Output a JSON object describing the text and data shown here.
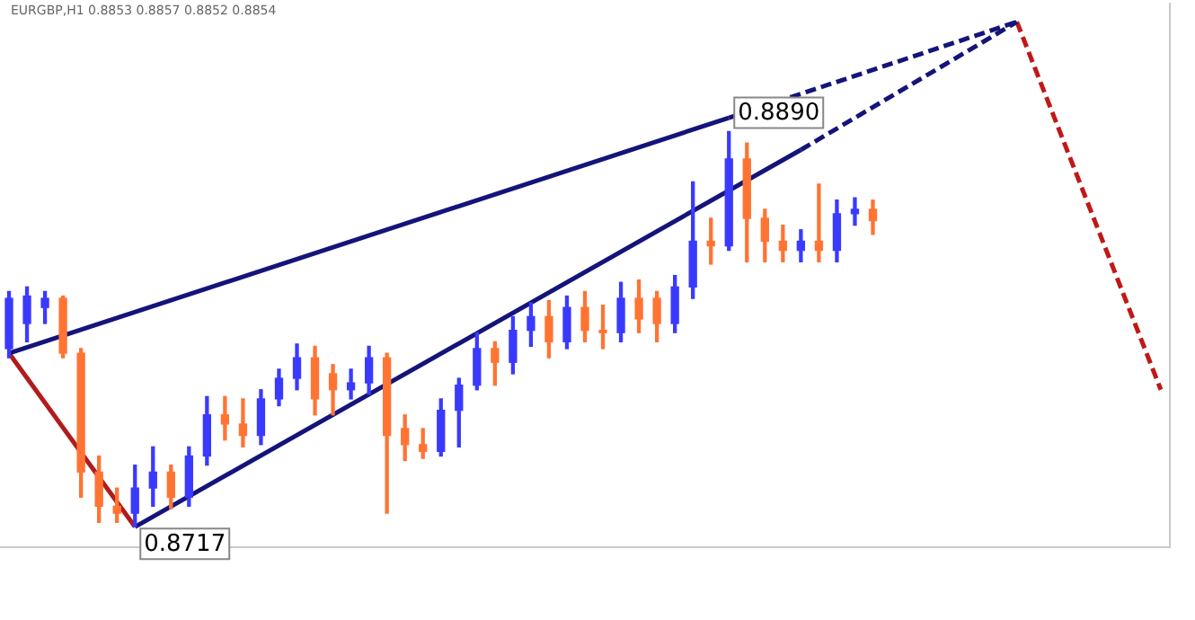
{
  "chart_data": {
    "type": "candlestick",
    "title": "EURGBP,H1  0.8853 0.8857 0.8852 0.8854",
    "categories": [
      null,
      null,
      null,
      null,
      null,
      null,
      null,
      null,
      null,
      null,
      null,
      null,
      null,
      null,
      null,
      null,
      null,
      null,
      null,
      null,
      null,
      null,
      null,
      null,
      null,
      null,
      null,
      null,
      null,
      null,
      null,
      null,
      null,
      null,
      null,
      null,
      null,
      null,
      null,
      null,
      null,
      null,
      null,
      null,
      null,
      null,
      null,
      null,
      null,
      null,
      null,
      null,
      null,
      null,
      null,
      null,
      null,
      null,
      null,
      null,
      null,
      null,
      null,
      null,
      null
    ],
    "ohlc": [
      [
        0.8795,
        0.882,
        0.8791,
        0.8817
      ],
      [
        0.8806,
        0.8822,
        0.8798,
        0.8818
      ],
      [
        0.8813,
        0.882,
        0.8806,
        0.8817
      ],
      [
        0.8817,
        0.8818,
        0.8791,
        0.8793
      ],
      [
        0.8793,
        0.8795,
        0.873,
        0.8741
      ],
      [
        0.8741,
        0.8748,
        0.8719,
        0.8726
      ],
      [
        0.8726,
        0.8734,
        0.8719,
        0.8723
      ],
      [
        0.8723,
        0.8744,
        0.8717,
        0.8734
      ],
      [
        0.8734,
        0.8752,
        0.8726,
        0.8741
      ],
      [
        0.8741,
        0.8744,
        0.8725,
        0.873
      ],
      [
        0.873,
        0.8752,
        0.8726,
        0.8748
      ],
      [
        0.8748,
        0.8774,
        0.8744,
        0.8766
      ],
      [
        0.8766,
        0.8774,
        0.8755,
        0.8762
      ],
      [
        0.8762,
        0.8773,
        0.8752,
        0.8757
      ],
      [
        0.8757,
        0.8777,
        0.8753,
        0.8773
      ],
      [
        0.8773,
        0.8786,
        0.877,
        0.8782
      ],
      [
        0.8782,
        0.8797,
        0.8777,
        0.8791
      ],
      [
        0.8791,
        0.8796,
        0.8766,
        0.8773
      ],
      [
        0.8784,
        0.8788,
        0.8766,
        0.8777
      ],
      [
        0.8777,
        0.8786,
        0.8773,
        0.878
      ],
      [
        0.878,
        0.8796,
        0.8775,
        0.8791
      ],
      [
        0.8791,
        0.8793,
        0.8723,
        0.8757
      ],
      [
        0.876,
        0.8766,
        0.8746,
        0.8753
      ],
      [
        0.8753,
        0.876,
        0.8747,
        0.875
      ],
      [
        0.875,
        0.8773,
        0.8748,
        0.8768
      ],
      [
        0.8768,
        0.8782,
        0.8752,
        0.8779
      ],
      [
        0.8779,
        0.8802,
        0.8777,
        0.8795
      ],
      [
        0.8795,
        0.8798,
        0.8779,
        0.8789
      ],
      [
        0.8789,
        0.8809,
        0.8784,
        0.8803
      ],
      [
        0.8803,
        0.8815,
        0.8796,
        0.8809
      ],
      [
        0.8809,
        0.8816,
        0.8791,
        0.8798
      ],
      [
        0.8798,
        0.8818,
        0.8795,
        0.8813
      ],
      [
        0.8813,
        0.882,
        0.8798,
        0.8803
      ],
      [
        0.8803,
        0.8814,
        0.8795,
        0.8802
      ],
      [
        0.8802,
        0.8824,
        0.8798,
        0.8817
      ],
      [
        0.8817,
        0.8825,
        0.8802,
        0.8808
      ],
      [
        0.8817,
        0.882,
        0.8798,
        0.8806
      ],
      [
        0.8806,
        0.8827,
        0.8802,
        0.8822
      ],
      [
        0.8822,
        0.8868,
        0.8817,
        0.8842
      ],
      [
        0.8842,
        0.8852,
        0.8832,
        0.884
      ],
      [
        0.884,
        0.889,
        0.8838,
        0.8878
      ],
      [
        0.8878,
        0.8885,
        0.8833,
        0.8852
      ],
      [
        0.8852,
        0.8856,
        0.8833,
        0.8842
      ],
      [
        0.8842,
        0.8849,
        0.8833,
        0.8838
      ],
      [
        0.8838,
        0.8847,
        0.8833,
        0.8842
      ],
      [
        0.8842,
        0.8867,
        0.8833,
        0.8838
      ],
      [
        0.8838,
        0.886,
        0.8833,
        0.8854
      ],
      [
        0.8854,
        0.8861,
        0.8849,
        0.8856
      ],
      [
        0.8856,
        0.886,
        0.8845,
        0.8851
      ],
      null,
      null,
      null,
      null,
      null,
      null,
      null,
      null,
      null,
      null,
      null,
      null,
      null,
      null,
      null,
      null
    ],
    "colors": [
      "#3a3aff",
      "#3a3aff",
      "#3a3aff",
      "#ff7433",
      "#ff7433",
      "#ff7433",
      "#ff7433",
      "#3a3aff",
      "#3a3aff",
      "#ff7433",
      "#3a3aff",
      "#3a3aff",
      "#ff7433",
      "#ff7433",
      "#3a3aff",
      "#3a3aff",
      "#3a3aff",
      "#ff7433",
      "#ff7433",
      "#3a3aff",
      "#3a3aff",
      "#ff7433",
      "#ff7433",
      "#ff7433",
      "#3a3aff",
      "#3a3aff",
      "#3a3aff",
      "#ff7433",
      "#3a3aff",
      "#3a3aff",
      "#ff7433",
      "#3a3aff",
      "#ff7433",
      "#ff7433",
      "#3a3aff",
      "#ff7433",
      "#ff7433",
      "#3a3aff",
      "#3a3aff",
      "#ff7433",
      "#3a3aff",
      "#ff7433",
      "#ff7433",
      "#ff7433",
      "#3a3aff",
      "#ff7433",
      "#3a3aff",
      "#3a3aff",
      "#ff7433",
      null,
      null,
      null,
      null,
      null,
      null,
      null,
      null,
      null,
      null,
      null,
      null,
      null,
      null,
      null,
      null
    ],
    "series": [
      {
        "type": "line",
        "color": "#14147a",
        "line_style": "solid",
        "values": [
          0.8793,
          null,
          null,
          null,
          null,
          null,
          null,
          null,
          null,
          null,
          null,
          null,
          null,
          null,
          null,
          null,
          null,
          null,
          null,
          null,
          null,
          null,
          null,
          null,
          null,
          null,
          null,
          null,
          null,
          null,
          null,
          null,
          null,
          null,
          null,
          null,
          null,
          null,
          null,
          null,
          0.8896,
          null,
          null,
          null,
          null,
          null,
          null,
          null,
          null,
          null,
          null,
          null,
          null,
          null,
          null,
          null,
          null,
          null,
          null,
          null,
          null,
          null,
          null,
          null,
          null
        ]
      },
      {
        "type": "line",
        "color": "#14147a",
        "line_style": "dashed",
        "values": [
          null,
          null,
          null,
          null,
          null,
          null,
          null,
          null,
          null,
          null,
          null,
          null,
          null,
          null,
          null,
          null,
          null,
          null,
          null,
          null,
          null,
          null,
          null,
          null,
          null,
          null,
          null,
          null,
          null,
          null,
          null,
          null,
          null,
          null,
          null,
          null,
          null,
          null,
          null,
          null,
          0.8896,
          null,
          null,
          null,
          null,
          null,
          null,
          null,
          null,
          null,
          null,
          null,
          null,
          null,
          null,
          null,
          0.8938,
          null,
          null,
          null,
          null,
          null,
          null,
          null,
          null
        ]
      },
      {
        "type": "line",
        "color": "#14147a",
        "line_style": "solid",
        "values": [
          null,
          null,
          null,
          null,
          null,
          null,
          null,
          0.8717,
          null,
          null,
          null,
          null,
          null,
          null,
          null,
          null,
          null,
          null,
          null,
          null,
          null,
          null,
          null,
          null,
          null,
          null,
          null,
          null,
          null,
          null,
          null,
          null,
          null,
          null,
          null,
          null,
          null,
          null,
          null,
          null,
          null,
          null,
          null,
          null,
          0.8882,
          null,
          null,
          null,
          null,
          null,
          null,
          null,
          null,
          null,
          null,
          null,
          null,
          null,
          null,
          null,
          null,
          null,
          null,
          null,
          null
        ]
      },
      {
        "type": "line",
        "color": "#14147a",
        "line_style": "dashed",
        "values": [
          null,
          null,
          null,
          null,
          null,
          null,
          null,
          null,
          null,
          null,
          null,
          null,
          null,
          null,
          null,
          null,
          null,
          null,
          null,
          null,
          null,
          null,
          null,
          null,
          null,
          null,
          null,
          null,
          null,
          null,
          null,
          null,
          null,
          null,
          null,
          null,
          null,
          null,
          null,
          null,
          null,
          null,
          null,
          null,
          0.8882,
          null,
          null,
          null,
          null,
          null,
          null,
          null,
          null,
          null,
          null,
          null,
          0.8938,
          null,
          null,
          null,
          null,
          null,
          null,
          null,
          null
        ]
      },
      {
        "type": "line",
        "color": "#b01c1c",
        "line_style": "solid",
        "values": [
          0.8793,
          null,
          null,
          null,
          null,
          null,
          null,
          0.8717,
          null,
          null,
          null,
          null,
          null,
          null,
          null,
          null,
          null,
          null,
          null,
          null,
          null,
          null,
          null,
          null,
          null,
          null,
          null,
          null,
          null,
          null,
          null,
          null,
          null,
          null,
          null,
          null,
          null,
          null,
          null,
          null,
          null,
          null,
          null,
          null,
          null,
          null,
          null,
          null,
          null,
          null,
          null,
          null,
          null,
          null,
          null,
          null,
          null,
          null,
          null,
          null,
          null,
          null,
          null,
          null,
          null
        ]
      },
      {
        "type": "line",
        "color": "#c01818",
        "line_style": "dashed",
        "values": [
          null,
          null,
          null,
          null,
          null,
          null,
          null,
          null,
          null,
          null,
          null,
          null,
          null,
          null,
          null,
          null,
          null,
          null,
          null,
          null,
          null,
          null,
          null,
          null,
          null,
          null,
          null,
          null,
          null,
          null,
          null,
          null,
          null,
          null,
          null,
          null,
          null,
          null,
          null,
          null,
          null,
          null,
          null,
          null,
          null,
          null,
          null,
          null,
          null,
          null,
          null,
          null,
          null,
          null,
          null,
          null,
          0.8938,
          null,
          null,
          null,
          null,
          null,
          null,
          null,
          0.8777
        ]
      }
    ],
    "annotations": [
      "0.8890",
      "0.8717"
    ],
    "ylim": [
      0.8708,
      0.8946
    ],
    "grid": false,
    "legend": false,
    "marker": "none"
  }
}
